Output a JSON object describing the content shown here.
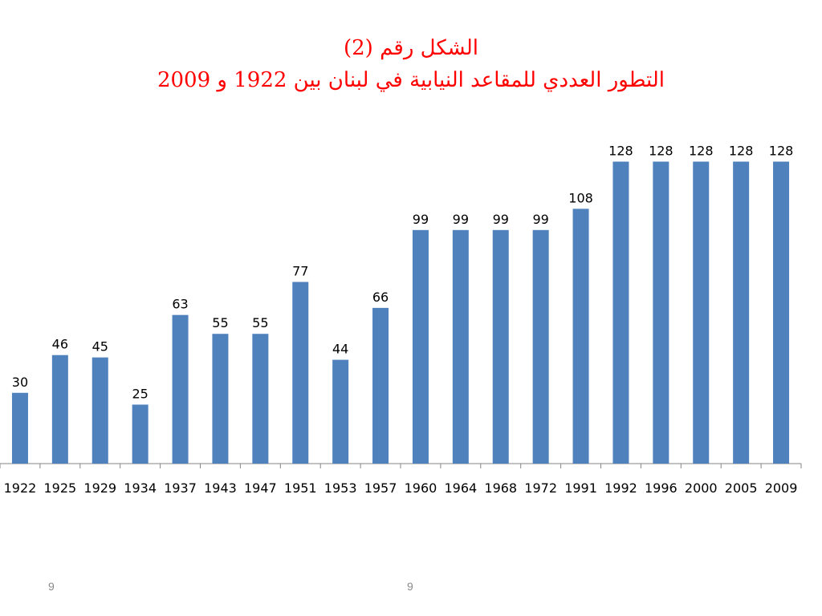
{
  "slide": {
    "title_line1": "الشكل رقم (2)",
    "title_line2": "التطور العددي للمقاعد النيابية في لبنان بين 1922 و 2009",
    "title_color": "#ff0000",
    "page_number_left": "9",
    "page_number_center": "9"
  },
  "chart_data": {
    "type": "bar",
    "title": "",
    "xlabel": "",
    "ylabel": "",
    "categories": [
      "1922",
      "1925",
      "1929",
      "1934",
      "1937",
      "1943",
      "1947",
      "1951",
      "1953",
      "1957",
      "1960",
      "1964",
      "1968",
      "1972",
      "1991",
      "1992",
      "1996",
      "2000",
      "2005",
      "2009"
    ],
    "values": [
      30,
      46,
      45,
      25,
      63,
      55,
      55,
      77,
      44,
      66,
      99,
      99,
      99,
      99,
      108,
      128,
      128,
      128,
      128,
      128
    ],
    "ylim": [
      0,
      128
    ],
    "bar_color": "#4f81bd",
    "data_labels": true,
    "grid": false,
    "legend": "none"
  }
}
